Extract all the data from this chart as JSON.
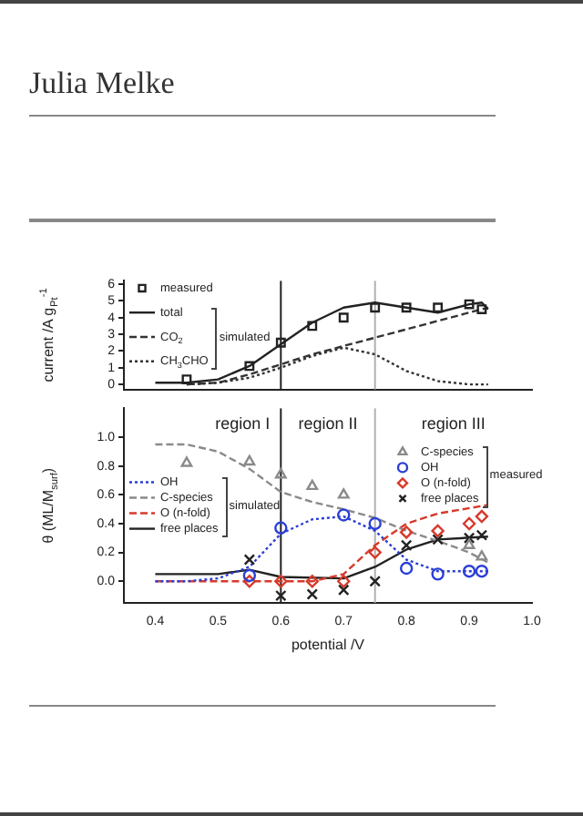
{
  "chart_data": [
    {
      "type": "scatter",
      "title": "Julia Melke",
      "ylabel": "current /A g$_{Pt}$$^{-1}$",
      "xlim": [
        0.35,
        1.0
      ],
      "ylim": [
        -0.3,
        6.2
      ],
      "yticks": [
        0,
        1,
        2,
        3,
        4,
        5,
        6
      ],
      "tick_labels": "y",
      "grid": false,
      "legend": "top left",
      "annotations": [
        "simulated"
      ],
      "ref_lines": [
        {
          "axis": "x",
          "value": 0.6,
          "color": "#222222"
        },
        {
          "axis": "x",
          "value": 0.75,
          "color": "#b0b0b0"
        }
      ],
      "series": [
        {
          "name": "measured",
          "marker": "square",
          "color": "#222222",
          "x": [
            0.45,
            0.55,
            0.6,
            0.65,
            0.7,
            0.75,
            0.8,
            0.85,
            0.9,
            0.92
          ],
          "values": [
            0.3,
            1.1,
            2.5,
            3.5,
            4.0,
            4.6,
            4.6,
            4.6,
            4.8,
            4.5
          ]
        },
        {
          "name": "total",
          "type": "line",
          "line_style": "solid",
          "color": "#222222",
          "x": [
            0.4,
            0.45,
            0.5,
            0.55,
            0.6,
            0.65,
            0.7,
            0.75,
            0.8,
            0.85,
            0.9,
            0.92,
            0.93
          ],
          "values": [
            0.1,
            0.1,
            0.3,
            1.1,
            2.4,
            3.7,
            4.6,
            4.9,
            4.6,
            4.3,
            4.8,
            4.9,
            4.5
          ]
        },
        {
          "name": "CO$_{2}$",
          "type": "line",
          "line_style": "dashed",
          "color": "#333333",
          "x": [
            0.45,
            0.5,
            0.55,
            0.6,
            0.65,
            0.7,
            0.75,
            0.8,
            0.85,
            0.9,
            0.93
          ],
          "values": [
            0,
            0.1,
            0.6,
            1.2,
            1.8,
            2.3,
            2.8,
            3.3,
            3.8,
            4.3,
            4.6
          ]
        },
        {
          "name": "CH$_{3}$CHO",
          "type": "line",
          "line_style": "dotted",
          "color": "#333333",
          "x": [
            0.45,
            0.5,
            0.55,
            0.6,
            0.65,
            0.7,
            0.75,
            0.8,
            0.85,
            0.9,
            0.93
          ],
          "values": [
            0,
            0.1,
            0.4,
            1.0,
            1.7,
            2.2,
            1.8,
            0.8,
            0.2,
            0,
            0
          ]
        }
      ]
    },
    {
      "type": "scatter",
      "xlabel": "potential /V",
      "ylabel": "θ (ML/M$_{surf}$)",
      "xlim": [
        0.35,
        1.0
      ],
      "xticks": [
        {
          "value": 0.4,
          "label": "0.4"
        },
        {
          "value": 0.5,
          "label": "0.5"
        },
        {
          "value": 0.6,
          "label": "0.6"
        },
        {
          "value": 0.7,
          "label": "0.7"
        },
        {
          "value": 0.8,
          "label": "0.8"
        },
        {
          "value": 0.9,
          "label": "0.9"
        },
        {
          "value": 1.0,
          "label": "1.0"
        }
      ],
      "ylim": [
        -0.15,
        1.2
      ],
      "yticks": [
        {
          "value": 0,
          "label": "0.0"
        },
        {
          "value": 0.2,
          "label": "0.2"
        },
        {
          "value": 0.4,
          "label": "0.4"
        },
        {
          "value": 0.6,
          "label": "0.6"
        },
        {
          "value": 0.8,
          "label": "0.8"
        },
        {
          "value": 1.0,
          "label": "1.0"
        }
      ],
      "grid": false,
      "legend": "left",
      "annotations": [
        "simulated",
        "measured",
        "region I",
        "region II",
        "region III"
      ],
      "ref_lines": [
        {
          "axis": "x",
          "value": 0.6,
          "color": "#222222"
        },
        {
          "axis": "x",
          "value": 0.75,
          "color": "#b0b0b0"
        }
      ],
      "series": [
        {
          "name": "OH",
          "type": "line",
          "line_style": "dotted",
          "color": "#2b3fd6",
          "x": [
            0.4,
            0.45,
            0.5,
            0.55,
            0.6,
            0.65,
            0.7,
            0.75,
            0.8,
            0.85,
            0.9,
            0.93
          ],
          "values": [
            0,
            0,
            0.02,
            0.1,
            0.33,
            0.43,
            0.45,
            0.35,
            0.15,
            0.07,
            0.07,
            0.07
          ]
        },
        {
          "name": "C-species",
          "type": "line",
          "line_style": "dashed",
          "color": "#8a8a8a",
          "x": [
            0.4,
            0.45,
            0.5,
            0.55,
            0.6,
            0.65,
            0.7,
            0.75,
            0.8,
            0.85,
            0.9,
            0.93
          ],
          "values": [
            0.95,
            0.95,
            0.9,
            0.78,
            0.62,
            0.55,
            0.5,
            0.44,
            0.35,
            0.28,
            0.2,
            0.13
          ]
        },
        {
          "name": "O (n-fold)",
          "type": "line",
          "line_style": "dashed",
          "color": "#d63a2b",
          "x": [
            0.4,
            0.5,
            0.6,
            0.65,
            0.7,
            0.75,
            0.8,
            0.85,
            0.93
          ],
          "values": [
            0,
            0,
            0,
            0,
            0.05,
            0.25,
            0.4,
            0.47,
            0.53
          ]
        },
        {
          "name": "free places",
          "type": "line",
          "line_style": "solid",
          "color": "#222222",
          "x": [
            0.4,
            0.5,
            0.55,
            0.6,
            0.7,
            0.75,
            0.8,
            0.85,
            0.93
          ],
          "values": [
            0.05,
            0.05,
            0.08,
            0.03,
            0.02,
            0.1,
            0.22,
            0.29,
            0.31
          ]
        },
        {
          "name": "C-species",
          "marker": "triangle",
          "color": "#8a8a8a",
          "x": [
            0.45,
            0.55,
            0.6,
            0.65,
            0.7,
            0.9,
            0.92
          ],
          "values": [
            0.82,
            0.83,
            0.74,
            0.66,
            0.6,
            0.25,
            0.17
          ]
        },
        {
          "name": "OH",
          "marker": "circle",
          "color": "#2b3fd6",
          "x": [
            0.55,
            0.6,
            0.7,
            0.75,
            0.8,
            0.85,
            0.9,
            0.92
          ],
          "values": [
            0.04,
            0.37,
            0.46,
            0.4,
            0.09,
            0.05,
            0.07,
            0.07
          ]
        },
        {
          "name": "O (n-fold)",
          "marker": "diamond",
          "color": "#d63a2b",
          "x": [
            0.55,
            0.6,
            0.65,
            0.7,
            0.75,
            0.8,
            0.85,
            0.9,
            0.92
          ],
          "values": [
            0,
            0,
            0,
            0,
            0.2,
            0.34,
            0.35,
            0.4,
            0.45
          ]
        },
        {
          "name": "free places",
          "marker": "cross",
          "color": "#222222",
          "x": [
            0.55,
            0.6,
            0.65,
            0.7,
            0.75,
            0.8,
            0.85,
            0.9,
            0.92
          ],
          "values": [
            0.15,
            -0.1,
            -0.09,
            -0.06,
            0,
            0.25,
            0.29,
            0.3,
            0.32
          ]
        }
      ]
    }
  ]
}
